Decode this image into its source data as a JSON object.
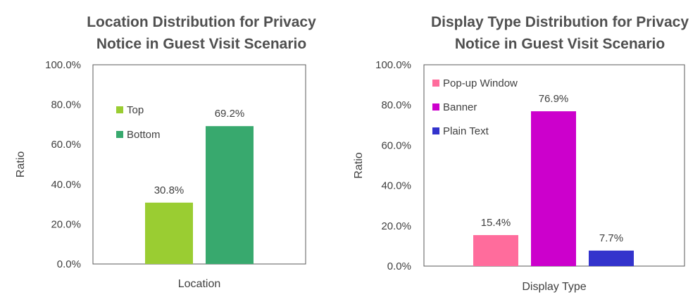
{
  "chart_data": [
    {
      "type": "bar",
      "title": [
        "Location Distribution for Privacy",
        "Notice in Guest Visit Scenario"
      ],
      "xlabel": "Location",
      "ylabel": "Ratio",
      "ylim": [
        0,
        100
      ],
      "yticks": [
        "0.0%",
        "20.0%",
        "40.0%",
        "60.0%",
        "80.0%",
        "100.0%"
      ],
      "grid": false,
      "legend_position": "upper-left",
      "series": [
        {
          "name": "Top",
          "value": 30.8,
          "label": "30.8%",
          "color": "#9ACD32"
        },
        {
          "name": "Bottom",
          "value": 69.2,
          "label": "69.2%",
          "color": "#38A96E"
        }
      ]
    },
    {
      "type": "bar",
      "title": [
        "Display Type Distribution for Privacy",
        "Notice in Guest Visit Scenario"
      ],
      "xlabel": "Display Type",
      "ylabel": "Ratio",
      "ylim": [
        0,
        100
      ],
      "yticks": [
        "0.0%",
        "20.0%",
        "40.0%",
        "60.0%",
        "80.0%",
        "100.0%"
      ],
      "grid": false,
      "legend_position": "upper-left",
      "series": [
        {
          "name": "Pop-up Window",
          "value": 15.4,
          "label": "15.4%",
          "color": "#FF6C9C"
        },
        {
          "name": "Banner",
          "value": 76.9,
          "label": "76.9%",
          "color": "#CC00CC"
        },
        {
          "name": "Plain Text",
          "value": 7.7,
          "label": "7.7%",
          "color": "#3333CC"
        }
      ]
    }
  ]
}
